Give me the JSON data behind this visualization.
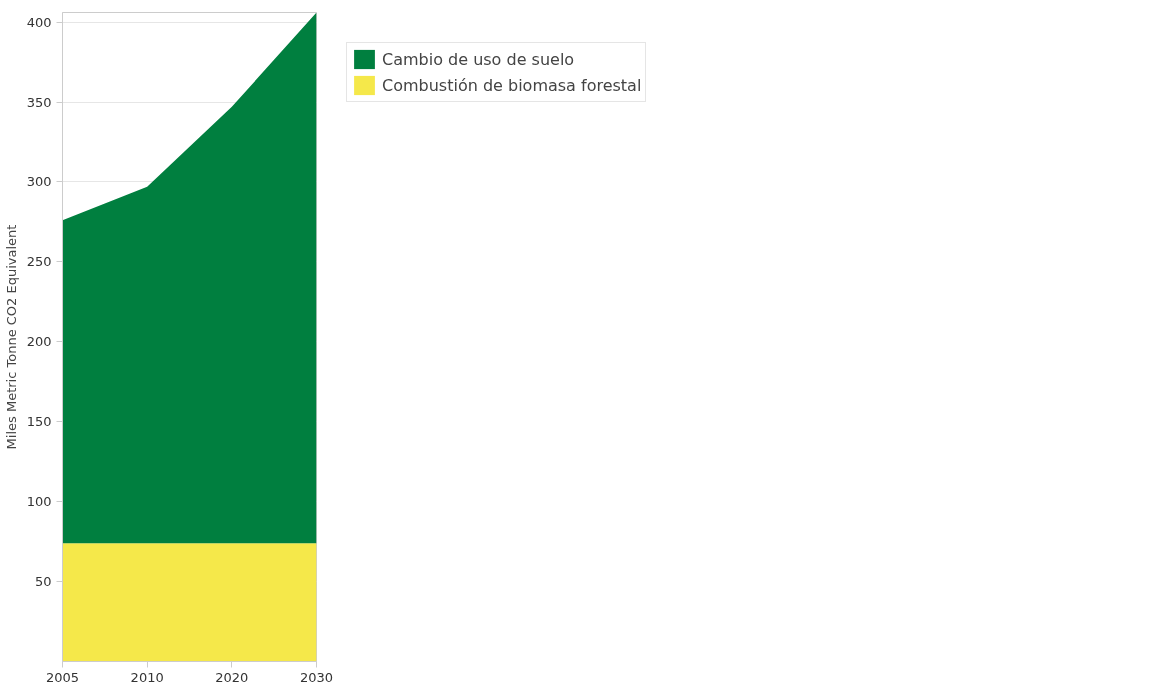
{
  "chart_data": {
    "type": "area",
    "stacked": true,
    "ylabel": "Miles Metric Tonne CO2 Equivalent",
    "categories": [
      "2005",
      "2010",
      "2020",
      "2030"
    ],
    "series": [
      {
        "name": "Combustión de biomasa forestal",
        "color": "#f5e84a",
        "values": [
          74,
          74,
          74,
          74
        ]
      },
      {
        "name": "Cambio de uso de suelo",
        "color": "#007f3f",
        "values": [
          202,
          223,
          273,
          332
        ]
      }
    ],
    "ylim": [
      0,
      406
    ],
    "yticks": [
      50,
      100,
      150,
      200,
      250,
      300,
      350,
      400
    ],
    "grid": "y",
    "legend": "top right"
  }
}
